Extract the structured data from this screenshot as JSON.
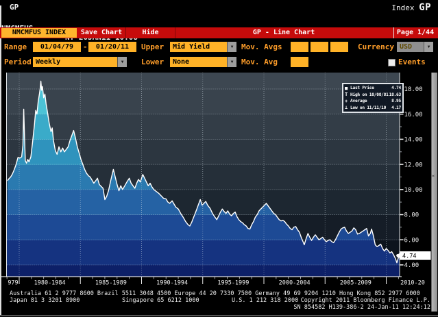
{
  "header": {
    "function_code": "GP",
    "context_label": "Index",
    "context_code": "GP",
    "security": "NMCMFUS",
    "session_info": "NY 20JAN11 10:08",
    "last_value": "4.74 %"
  },
  "red_bar": {
    "security_tag": "NMCMFUS INDEX",
    "save_button": "Save Chart",
    "hide_button": "Hide",
    "title": "GP - Line Chart",
    "page": "Page 1/44"
  },
  "toolbar": {
    "range_label": "Range",
    "range_start": "01/04/79",
    "range_dash": "-",
    "range_end": "01/20/11",
    "upper_label": "Upper",
    "upper_value": "Mid Yield",
    "mov_avgs_label": "Mov. Avgs",
    "currency_label": "Currency",
    "currency_value": "USD",
    "period_label": "Period",
    "period_value": "Weekly",
    "lower_label": "Lower",
    "lower_value": "None",
    "mov_avg_label": "Mov. Avg",
    "events_label": "Events",
    "dropdown_arrow": "▼"
  },
  "legend": {
    "rows": [
      {
        "icon": "■",
        "label": "Last Price",
        "value": "4.74"
      },
      {
        "icon": "T",
        "label": "High on 10/08/81",
        "value": "18.63"
      },
      {
        "icon": "+",
        "label": "Average",
        "value": "8.95"
      },
      {
        "icon": "⊥",
        "label": "Low on 11/11/10",
        "value": "4.17"
      }
    ]
  },
  "scrollbar_glyph": "«",
  "chart_data": {
    "type": "area",
    "title": "GP - Line Chart",
    "ylabel": "Mid Yield (%)",
    "ylim": [
      3.0,
      19.3
    ],
    "x_range_years": [
      1979.04,
      2011.05
    ],
    "grid": true,
    "stats": {
      "last_price": 4.74,
      "high_date": "10/08/81",
      "high": 18.63,
      "average": 8.95,
      "low_date": "11/11/10",
      "low": 4.17
    },
    "y_axis": {
      "tick_values": [
        18,
        16,
        14,
        12,
        10,
        8,
        6,
        4
      ],
      "tick_labels": [
        "18.00",
        "16.00",
        "14.00",
        "12.00",
        "10.00",
        "8.00",
        "6.00",
        "4.00"
      ],
      "last_price_label": "4.74"
    },
    "x_axis": {
      "divider_years": [
        1980,
        1985,
        1990,
        1995,
        2000,
        2005,
        2010
      ],
      "minor_tick_step_years": 1,
      "period_labels": [
        "979",
        "1980-1984",
        "1985-1989",
        "1990-1994",
        "1995-1999",
        "2000-2004",
        "2005-2009",
        "2010-20"
      ]
    },
    "series": [
      [
        1979.04,
        10.7
      ],
      [
        1979.15,
        10.85
      ],
      [
        1979.3,
        11.0
      ],
      [
        1979.45,
        11.25
      ],
      [
        1979.6,
        11.6
      ],
      [
        1979.75,
        12.0
      ],
      [
        1979.9,
        12.55
      ],
      [
        1980.05,
        12.5
      ],
      [
        1980.2,
        12.6
      ],
      [
        1980.3,
        13.5
      ],
      [
        1980.37,
        16.4
      ],
      [
        1980.44,
        14.0
      ],
      [
        1980.5,
        12.3
      ],
      [
        1980.6,
        12.1
      ],
      [
        1980.7,
        12.4
      ],
      [
        1980.8,
        12.2
      ],
      [
        1980.95,
        12.6
      ],
      [
        1981.1,
        13.8
      ],
      [
        1981.25,
        15.2
      ],
      [
        1981.35,
        16.3
      ],
      [
        1981.45,
        16.0
      ],
      [
        1981.55,
        17.0
      ],
      [
        1981.65,
        17.6
      ],
      [
        1981.72,
        18.1
      ],
      [
        1981.77,
        18.63
      ],
      [
        1981.83,
        17.9
      ],
      [
        1981.9,
        18.2
      ],
      [
        1982.0,
        17.3
      ],
      [
        1982.1,
        17.6
      ],
      [
        1982.2,
        16.8
      ],
      [
        1982.3,
        16.2
      ],
      [
        1982.45,
        15.3
      ],
      [
        1982.6,
        14.6
      ],
      [
        1982.7,
        14.9
      ],
      [
        1982.8,
        13.9
      ],
      [
        1982.95,
        13.1
      ],
      [
        1983.1,
        12.8
      ],
      [
        1983.25,
        13.4
      ],
      [
        1983.4,
        13.0
      ],
      [
        1983.55,
        13.3
      ],
      [
        1983.7,
        13.0
      ],
      [
        1983.85,
        13.2
      ],
      [
        1984.0,
        13.4
      ],
      [
        1984.15,
        13.9
      ],
      [
        1984.3,
        14.3
      ],
      [
        1984.45,
        14.7
      ],
      [
        1984.6,
        14.1
      ],
      [
        1984.75,
        13.4
      ],
      [
        1984.9,
        12.9
      ],
      [
        1985.05,
        12.4
      ],
      [
        1985.2,
        12.0
      ],
      [
        1985.35,
        11.6
      ],
      [
        1985.5,
        11.3
      ],
      [
        1985.65,
        11.1
      ],
      [
        1985.8,
        11.0
      ],
      [
        1985.95,
        10.75
      ],
      [
        1986.1,
        10.5
      ],
      [
        1986.25,
        10.7
      ],
      [
        1986.4,
        10.9
      ],
      [
        1986.55,
        10.4
      ],
      [
        1986.7,
        10.25
      ],
      [
        1986.85,
        10.1
      ],
      [
        1987.0,
        9.2
      ],
      [
        1987.15,
        9.45
      ],
      [
        1987.3,
        9.9
      ],
      [
        1987.5,
        10.8
      ],
      [
        1987.7,
        11.6
      ],
      [
        1987.85,
        11.0
      ],
      [
        1988.0,
        10.4
      ],
      [
        1988.15,
        9.9
      ],
      [
        1988.3,
        10.3
      ],
      [
        1988.45,
        10.0
      ],
      [
        1988.6,
        10.25
      ],
      [
        1988.8,
        10.6
      ],
      [
        1989.0,
        10.9
      ],
      [
        1989.15,
        10.5
      ],
      [
        1989.3,
        10.3
      ],
      [
        1989.45,
        10.1
      ],
      [
        1989.6,
        10.5
      ],
      [
        1989.75,
        10.8
      ],
      [
        1989.9,
        10.6
      ],
      [
        1990.1,
        11.2
      ],
      [
        1990.25,
        10.9
      ],
      [
        1990.4,
        10.6
      ],
      [
        1990.55,
        10.3
      ],
      [
        1990.7,
        10.5
      ],
      [
        1990.85,
        10.2
      ],
      [
        1991.0,
        10.0
      ],
      [
        1991.2,
        9.85
      ],
      [
        1991.4,
        9.7
      ],
      [
        1991.6,
        9.5
      ],
      [
        1991.8,
        9.3
      ],
      [
        1992.0,
        9.25
      ],
      [
        1992.15,
        9.0
      ],
      [
        1992.3,
        8.9
      ],
      [
        1992.5,
        9.1
      ],
      [
        1992.65,
        8.85
      ],
      [
        1992.8,
        8.6
      ],
      [
        1993.0,
        8.45
      ],
      [
        1993.2,
        8.1
      ],
      [
        1993.4,
        7.8
      ],
      [
        1993.6,
        7.45
      ],
      [
        1993.8,
        7.2
      ],
      [
        1993.95,
        7.1
      ],
      [
        1994.1,
        7.4
      ],
      [
        1994.3,
        7.9
      ],
      [
        1994.5,
        8.4
      ],
      [
        1994.65,
        8.8
      ],
      [
        1994.8,
        9.2
      ],
      [
        1994.95,
        8.75
      ],
      [
        1995.1,
        8.9
      ],
      [
        1995.25,
        9.05
      ],
      [
        1995.4,
        8.75
      ],
      [
        1995.6,
        8.5
      ],
      [
        1995.8,
        8.1
      ],
      [
        1996.0,
        7.8
      ],
      [
        1996.15,
        7.6
      ],
      [
        1996.3,
        7.9
      ],
      [
        1996.45,
        8.2
      ],
      [
        1996.6,
        8.45
      ],
      [
        1996.75,
        8.25
      ],
      [
        1996.9,
        8.1
      ],
      [
        1997.05,
        8.3
      ],
      [
        1997.2,
        8.05
      ],
      [
        1997.35,
        7.9
      ],
      [
        1997.5,
        8.1
      ],
      [
        1997.65,
        8.2
      ],
      [
        1997.8,
        7.85
      ],
      [
        1997.95,
        7.6
      ],
      [
        1998.1,
        7.45
      ],
      [
        1998.25,
        7.35
      ],
      [
        1998.4,
        7.2
      ],
      [
        1998.55,
        7.1
      ],
      [
        1998.7,
        6.9
      ],
      [
        1998.85,
        6.85
      ],
      [
        1999.0,
        7.2
      ],
      [
        1999.15,
        7.45
      ],
      [
        1999.3,
        7.8
      ],
      [
        1999.45,
        8.0
      ],
      [
        1999.6,
        8.3
      ],
      [
        1999.75,
        8.45
      ],
      [
        1999.9,
        8.6
      ],
      [
        2000.05,
        8.75
      ],
      [
        2000.2,
        8.9
      ],
      [
        2000.35,
        8.7
      ],
      [
        2000.5,
        8.5
      ],
      [
        2000.65,
        8.3
      ],
      [
        2000.8,
        8.1
      ],
      [
        2000.95,
        8.0
      ],
      [
        2001.1,
        7.8
      ],
      [
        2001.25,
        7.6
      ],
      [
        2001.4,
        7.5
      ],
      [
        2001.55,
        7.55
      ],
      [
        2001.7,
        7.45
      ],
      [
        2001.85,
        7.25
      ],
      [
        2002.0,
        7.1
      ],
      [
        2002.15,
        6.9
      ],
      [
        2002.3,
        6.8
      ],
      [
        2002.45,
        7.0
      ],
      [
        2002.6,
        7.05
      ],
      [
        2002.75,
        6.8
      ],
      [
        2002.9,
        6.6
      ],
      [
        2003.05,
        6.2
      ],
      [
        2003.2,
        5.85
      ],
      [
        2003.3,
        5.6
      ],
      [
        2003.45,
        6.1
      ],
      [
        2003.6,
        6.5
      ],
      [
        2003.75,
        6.2
      ],
      [
        2003.9,
        5.95
      ],
      [
        2004.05,
        6.2
      ],
      [
        2004.2,
        6.4
      ],
      [
        2004.35,
        6.2
      ],
      [
        2004.5,
        6.0
      ],
      [
        2004.65,
        6.1
      ],
      [
        2004.8,
        6.2
      ],
      [
        2004.95,
        6.0
      ],
      [
        2005.1,
        5.85
      ],
      [
        2005.25,
        5.95
      ],
      [
        2005.4,
        6.0
      ],
      [
        2005.55,
        5.85
      ],
      [
        2005.7,
        5.77
      ],
      [
        2005.85,
        6.0
      ],
      [
        2006.0,
        6.3
      ],
      [
        2006.15,
        6.6
      ],
      [
        2006.3,
        6.85
      ],
      [
        2006.45,
        6.95
      ],
      [
        2006.6,
        7.0
      ],
      [
        2006.75,
        6.7
      ],
      [
        2006.9,
        6.5
      ],
      [
        2007.05,
        6.6
      ],
      [
        2007.2,
        6.7
      ],
      [
        2007.35,
        6.95
      ],
      [
        2007.5,
        6.8
      ],
      [
        2007.65,
        6.45
      ],
      [
        2007.8,
        6.5
      ],
      [
        2007.95,
        6.6
      ],
      [
        2008.1,
        6.7
      ],
      [
        2008.25,
        6.8
      ],
      [
        2008.4,
        6.9
      ],
      [
        2008.55,
        6.3
      ],
      [
        2008.7,
        6.5
      ],
      [
        2008.8,
        6.85
      ],
      [
        2008.95,
        6.3
      ],
      [
        2009.1,
        5.6
      ],
      [
        2009.25,
        5.45
      ],
      [
        2009.4,
        5.55
      ],
      [
        2009.55,
        5.65
      ],
      [
        2009.7,
        5.3
      ],
      [
        2009.85,
        5.1
      ],
      [
        2010.0,
        5.3
      ],
      [
        2010.15,
        5.15
      ],
      [
        2010.3,
        4.95
      ],
      [
        2010.45,
        5.05
      ],
      [
        2010.6,
        4.8
      ],
      [
        2010.75,
        4.5
      ],
      [
        2010.87,
        4.17
      ],
      [
        2010.95,
        4.45
      ],
      [
        2011.05,
        4.74
      ]
    ]
  },
  "colors": {
    "amber_label": "#ff9e2a",
    "amber_field": "#ffb227",
    "bloomberg_red": "#c60b0b",
    "line": "#ffffff",
    "bg_band_bounds": [
      106,
      130,
      167,
      204,
      241,
      277,
      314,
      351,
      387,
      404
    ],
    "bg_bands": [
      "#3d4751",
      "#39434d",
      "#333d47",
      "#2c3640",
      "#252f39",
      "#1d2731",
      "#151d27",
      "#0c141d",
      "#070d15"
    ],
    "fill_band_bounds": [
      106,
      167,
      204,
      241,
      277,
      314,
      351,
      387,
      404
    ],
    "fill_bands": [
      "#4cc3d6",
      "#3aabc9",
      "#2f93bd",
      "#2a7ab0",
      "#2562a4",
      "#1d4a95",
      "#153380",
      "#0d2068"
    ],
    "grid": "rgba(215,228,235,0.5)",
    "axis_text": "#f0f0f0"
  },
  "footer": {
    "line1": "Australia 61 2 9777 8600 Brazil 5511 3048 4500 Europe 44 20 7330 7500 Germany 49 69 9204 1210 Hong Kong 852 2977 6000",
    "line2_segments": [
      "Japan 81 3 3201 8900",
      "Singapore 65 6212 1000",
      "U.S. 1 212 318 2000",
      "Copyright 2011 Bloomberg Finance L.P."
    ],
    "line3": "SN 854582 H139-386-2 24-Jan-11 12:24:12"
  }
}
